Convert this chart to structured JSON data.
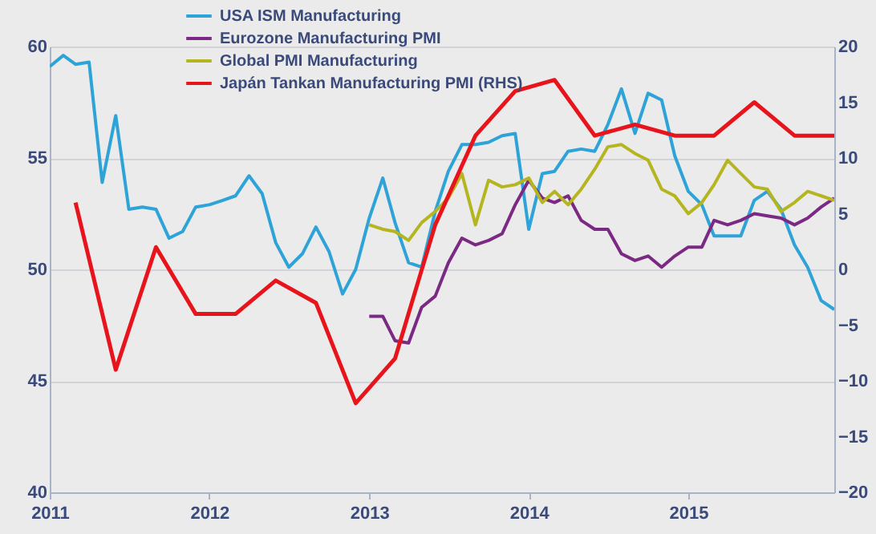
{
  "chart_data": {
    "type": "line",
    "xlim": [
      "2011-01",
      "2015-12"
    ],
    "xticks": [
      "2011",
      "2012",
      "2013",
      "2014",
      "2015"
    ],
    "ylim": [
      40,
      60
    ],
    "yticks": [
      40,
      45,
      50,
      55,
      60
    ],
    "y2lim": [
      -20,
      20
    ],
    "y2ticks": [
      -20,
      -15,
      -10,
      -5,
      0,
      5,
      10,
      15,
      20
    ],
    "grid": "y",
    "legend": "top",
    "series": [
      {
        "name": "USA ISM Manufacturing",
        "color": "#2ea3d8",
        "x": [
          "2011-01",
          "2011-02",
          "2011-03",
          "2011-04",
          "2011-05",
          "2011-06",
          "2011-07",
          "2011-08",
          "2011-09",
          "2011-10",
          "2011-11",
          "2011-12",
          "2012-01",
          "2012-02",
          "2012-03",
          "2012-04",
          "2012-05",
          "2012-06",
          "2012-07",
          "2012-08",
          "2012-09",
          "2012-10",
          "2012-11",
          "2012-12",
          "2013-01",
          "2013-02",
          "2013-03",
          "2013-04",
          "2013-05",
          "2013-06",
          "2013-07",
          "2013-08",
          "2013-09",
          "2013-10",
          "2013-11",
          "2013-12",
          "2014-01",
          "2014-02",
          "2014-03",
          "2014-04",
          "2014-05",
          "2014-06",
          "2014-07",
          "2014-08",
          "2014-09",
          "2014-10",
          "2014-11",
          "2014-12",
          "2015-01",
          "2015-02",
          "2015-03",
          "2015-04",
          "2015-05",
          "2015-06",
          "2015-07",
          "2015-08",
          "2015-09",
          "2015-10",
          "2015-11",
          "2015-12"
        ],
        "values": [
          59.1,
          59.6,
          59.2,
          59.3,
          53.9,
          56.9,
          52.7,
          52.8,
          52.7,
          51.4,
          51.7,
          52.8,
          52.9,
          53.1,
          53.3,
          54.2,
          53.4,
          51.2,
          50.1,
          50.7,
          51.9,
          50.8,
          48.9,
          50.0,
          52.3,
          54.1,
          52.1,
          50.3,
          50.1,
          52.6,
          54.4,
          55.6,
          55.6,
          55.7,
          56.0,
          56.1,
          51.8,
          54.3,
          54.4,
          55.3,
          55.4,
          55.3,
          56.5,
          58.1,
          56.1,
          57.9,
          57.6,
          55.1,
          53.5,
          52.9,
          51.5,
          51.5,
          51.5,
          53.1,
          53.5,
          52.7,
          51.1,
          50.1,
          48.6,
          48.2
        ]
      },
      {
        "name": "Eurozone Manufacturing PMI",
        "color": "#7b2a83",
        "x": [
          "2013-01",
          "2013-02",
          "2013-03",
          "2013-04",
          "2013-05",
          "2013-06",
          "2013-07",
          "2013-08",
          "2013-09",
          "2013-10",
          "2013-11",
          "2013-12",
          "2014-01",
          "2014-02",
          "2014-03",
          "2014-04",
          "2014-05",
          "2014-06",
          "2014-07",
          "2014-08",
          "2014-09",
          "2014-10",
          "2014-11",
          "2014-12",
          "2015-01",
          "2015-02",
          "2015-03",
          "2015-04",
          "2015-05",
          "2015-06",
          "2015-07",
          "2015-08",
          "2015-09",
          "2015-10",
          "2015-11",
          "2015-12"
        ],
        "values": [
          47.9,
          47.9,
          46.8,
          46.7,
          48.3,
          48.8,
          50.3,
          51.4,
          51.1,
          51.3,
          51.6,
          52.9,
          54.0,
          53.2,
          53.0,
          53.3,
          52.2,
          51.8,
          51.8,
          50.7,
          50.4,
          50.6,
          50.1,
          50.6,
          51.0,
          51.0,
          52.2,
          52.0,
          52.2,
          52.5,
          52.4,
          52.3,
          52.0,
          52.3,
          52.8,
          53.2
        ]
      },
      {
        "name": "Global PMI Manufacturing",
        "color": "#b5b520",
        "x": [
          "2013-01",
          "2013-02",
          "2013-03",
          "2013-04",
          "2013-05",
          "2013-06",
          "2013-07",
          "2013-08",
          "2013-09",
          "2013-10",
          "2013-11",
          "2013-12",
          "2014-01",
          "2014-02",
          "2014-03",
          "2014-04",
          "2014-05",
          "2014-06",
          "2014-07",
          "2014-08",
          "2014-09",
          "2014-10",
          "2014-11",
          "2014-12",
          "2015-01",
          "2015-02",
          "2015-03",
          "2015-04",
          "2015-05",
          "2015-06",
          "2015-07",
          "2015-08",
          "2015-09",
          "2015-10",
          "2015-11",
          "2015-12"
        ],
        "values": [
          52.0,
          51.8,
          51.7,
          51.3,
          52.1,
          52.6,
          53.2,
          54.3,
          52.0,
          54.0,
          53.7,
          53.8,
          54.1,
          53.0,
          53.5,
          52.9,
          53.6,
          54.5,
          55.5,
          55.6,
          55.2,
          54.9,
          53.6,
          53.3,
          52.5,
          53.0,
          53.8,
          54.9,
          54.3,
          53.7,
          53.6,
          52.6,
          53.0,
          53.5,
          53.3,
          53.1
        ]
      },
      {
        "name": "Japán Tankan Manufacturing PMI (RHS)",
        "color": "#e8141b",
        "axis": "y2",
        "x": [
          "2011-03",
          "2011-06",
          "2011-09",
          "2011-12",
          "2012-03",
          "2012-06",
          "2012-09",
          "2012-12",
          "2013-03",
          "2013-06",
          "2013-09",
          "2013-12",
          "2014-03",
          "2014-06",
          "2014-09",
          "2014-12",
          "2015-03",
          "2015-06",
          "2015-09",
          "2015-12"
        ],
        "values": [
          6,
          -9,
          2,
          -4,
          -4,
          -1,
          -3,
          -12,
          -8,
          4,
          12,
          16,
          17,
          12,
          13,
          12,
          12,
          15,
          12,
          12
        ]
      }
    ]
  }
}
